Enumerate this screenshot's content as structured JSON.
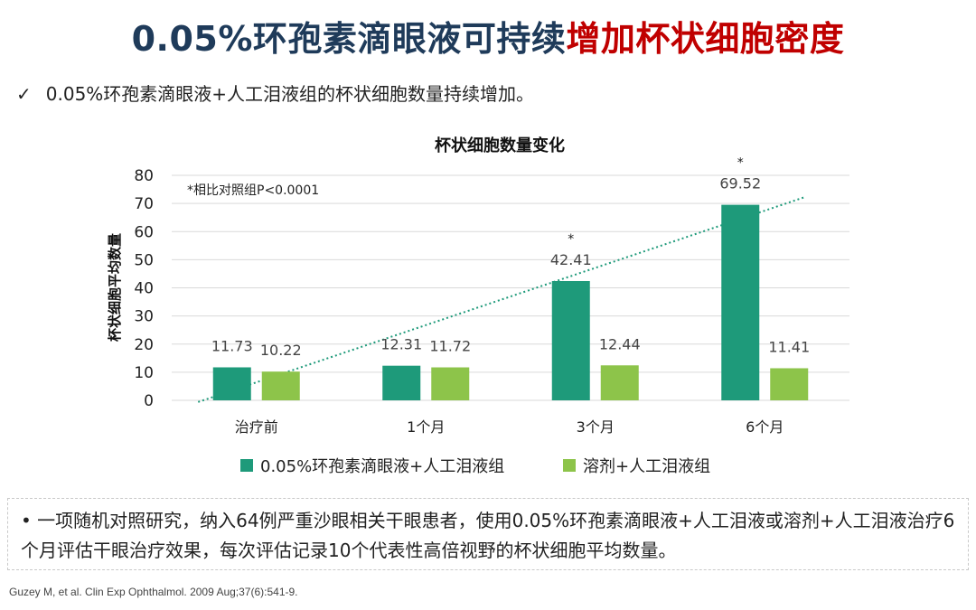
{
  "page": {
    "title_part1": "0.05%环孢素滴眼液可持续",
    "title_part2": "增加杯状细胞密度",
    "check_mark": "✓",
    "check_text": "0.05%环孢素滴眼液+人工泪液组的杯状细胞数量持续增加。",
    "note_bullet": "•",
    "note_text": "一项随机对照研究，纳入64例严重沙眼相关干眼患者，使用0.05%环孢素滴眼液+人工泪液或溶剂+人工泪液治疗6个月评估干眼治疗效果，每次评估记录10个代表性高倍视野的杯状细胞平均数量。",
    "reference": "Guzey M, et al. Clin Exp Ophthalmol. 2009 Aug;37(6):541-9."
  },
  "colors": {
    "title": "#1f3b5a",
    "highlight": "#c00000",
    "series1": "#1e9a7a",
    "series2": "#8dc44a",
    "trend": "#1e9a7a",
    "grid": "#d9d9d9"
  },
  "chart_data": {
    "type": "bar",
    "title": "杯状细胞数量变化",
    "ylabel": "杯状细胞平均数量",
    "xlabel": "",
    "ylim": [
      0,
      80
    ],
    "yticks": [
      0,
      10,
      20,
      30,
      40,
      50,
      60,
      70,
      80
    ],
    "categories": [
      "治疗前",
      "1个月",
      "3个月",
      "6个月"
    ],
    "series": [
      {
        "name": "0.05%环孢素滴眼液+人工泪液组",
        "values": [
          11.73,
          12.31,
          42.41,
          69.52
        ],
        "labels": [
          "11.73",
          "12.31",
          "42.41",
          "69.52"
        ]
      },
      {
        "name": "溶剂+人工泪液组",
        "values": [
          10.22,
          11.72,
          12.44,
          11.41
        ],
        "labels": [
          "10.22",
          "11.72",
          "12.44",
          "11.41"
        ]
      }
    ],
    "significance_marker": "*",
    "significant_categories": [
      2,
      3
    ],
    "annotation": "*相比对照组P<0.0001",
    "trendline": {
      "series": 0,
      "type": "linear",
      "style": "dotted"
    },
    "legend_position": "bottom",
    "grid": true
  }
}
